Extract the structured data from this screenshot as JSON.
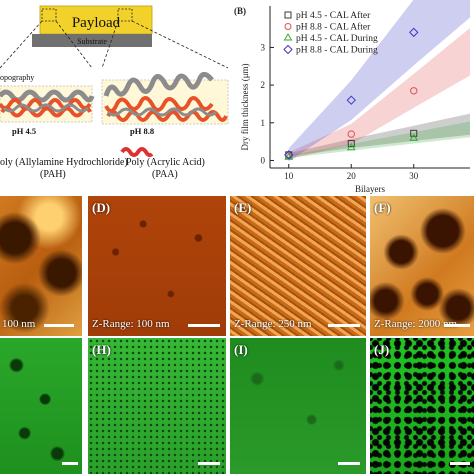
{
  "schematic": {
    "payload_label": "Payload",
    "substrate_label": "Substrate",
    "topography_label": "opography",
    "ph_left": "pH 4.5",
    "ph_right": "pH 8.8",
    "pah_line1": "oly (Allylamine Hydrochloride)",
    "pah_line2": "(PAH)",
    "paa_line1": "Poly (Acrylic Acid)",
    "paa_line2": "(PAA)"
  },
  "panel_b_label": "(B)",
  "chart_data": {
    "type": "scatter",
    "xlabel": "Bilayers",
    "ylabel": "Dry film thickness (μm)",
    "x_ticks": [
      10,
      20,
      30
    ],
    "y_ticks": [
      0,
      1,
      2,
      3
    ],
    "xlim": [
      7,
      39
    ],
    "ylim": [
      -0.2,
      4.1
    ],
    "legend_position": "top-right",
    "series": [
      {
        "name": "pH 4.5 - CAL After",
        "marker": "square",
        "color": "#3a3a3a",
        "x": [
          10,
          20,
          30
        ],
        "y": [
          0.15,
          0.45,
          0.72
        ]
      },
      {
        "name": "pH 8.8 - CAL After",
        "marker": "circle",
        "color": "#e05050",
        "x": [
          10,
          20,
          30
        ],
        "y": [
          0.12,
          0.7,
          1.85
        ]
      },
      {
        "name": "pH 4.5 - CAL During",
        "marker": "triangle",
        "color": "#3aa83a",
        "x": [
          10,
          20,
          30
        ],
        "y": [
          0.1,
          0.35,
          0.6
        ]
      },
      {
        "name": "pH 8.8 - CAL During",
        "marker": "diamond",
        "color": "#3a3ac8",
        "x": [
          10,
          20,
          30
        ],
        "y": [
          0.15,
          1.6,
          3.4
        ]
      }
    ]
  },
  "afm_panels": [
    {
      "label": "",
      "zrange": "100 nm"
    },
    {
      "label": "(D)",
      "zrange": "Z-Range: 100 nm"
    },
    {
      "label": "(E)",
      "zrange": "Z-Range: 250 nm"
    },
    {
      "label": "(F)",
      "zrange": "Z-Range: 2000 nm"
    }
  ],
  "fluor_panels": [
    {
      "label": ""
    },
    {
      "label": "(H)"
    },
    {
      "label": "(I)"
    },
    {
      "label": "(J)"
    }
  ]
}
